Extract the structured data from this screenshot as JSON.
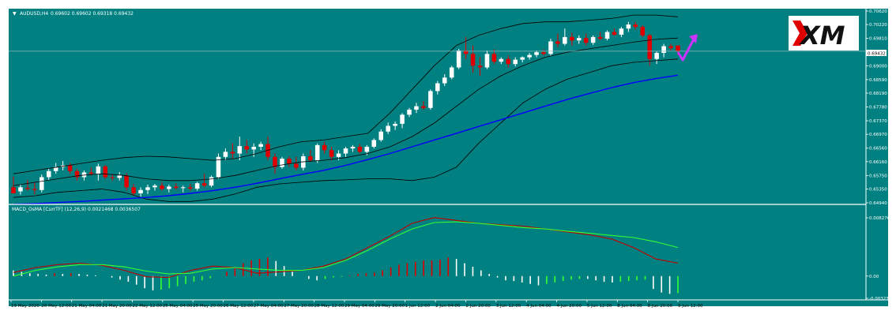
{
  "colors": {
    "background": "#008080",
    "frame": "#ffffff",
    "bull_candle": "#ffffff",
    "bear_candle": "#e00000",
    "bollinger": "#000000",
    "moving_average": "#0000ff",
    "macd_main": "#c00000",
    "macd_signal": "#33ff33",
    "osma_up": "#ffffff",
    "osma_up_alt": "#e00000",
    "osma_down": "#33ff33",
    "arrow": "#cc33ff",
    "last_price_bg": "#ffffff"
  },
  "header": {
    "symbol_label": "AUDUSD,H4",
    "ohlc_label": "0.69602 0.69602 0.69318 0.69432"
  },
  "logo": {
    "text": "XM"
  },
  "last_price_label": "0.69432",
  "macd_header": "MACD_OsMA [CurrTF] (12,26,9) 0.0021468 0.0036507",
  "chart_data": [
    {
      "type": "candlestick",
      "title": "AUDUSD,H4",
      "price_axis_ticks": [
        "0.70620",
        "0.70220",
        "0.69810",
        "0.69432",
        "0.69000",
        "0.68590",
        "0.68190",
        "0.67780",
        "0.67370",
        "0.66970",
        "0.66560",
        "0.66160",
        "0.65750",
        "0.65350",
        "0.64940"
      ],
      "ylim": [
        0.6494,
        0.7062
      ],
      "time_axis_ticks": [
        "19 May 2020",
        "20 May 12:00",
        "21 May 04:00",
        "21 May 20:00",
        "22 May 12:00",
        "25 May 04:00",
        "25 May 20:00",
        "26 May 12:00",
        "27 May 04:00",
        "27 May 20:00",
        "28 May 12:00",
        "29 May 04:00",
        "29 May 20:00",
        "1 Jun 12:00",
        "2 Jun 04:00",
        "2 Jun 20:00",
        "3 Jun 12:00",
        "4 Jun 04:00",
        "4 Jun 20:00",
        "5 Jun 12:00",
        "8 Jun 04:00",
        "8 Jun 20:00",
        "9 Jun 12:00"
      ],
      "candles": [
        {
          "o": 0.654,
          "h": 0.6572,
          "l": 0.6524,
          "c": 0.6522
        },
        {
          "o": 0.6528,
          "h": 0.655,
          "l": 0.6518,
          "c": 0.654
        },
        {
          "o": 0.6538,
          "h": 0.6562,
          "l": 0.653,
          "c": 0.6535
        },
        {
          "o": 0.6535,
          "h": 0.6555,
          "l": 0.652,
          "c": 0.6532
        },
        {
          "o": 0.6532,
          "h": 0.6578,
          "l": 0.6525,
          "c": 0.657
        },
        {
          "o": 0.657,
          "h": 0.6596,
          "l": 0.656,
          "c": 0.6588
        },
        {
          "o": 0.6588,
          "h": 0.6612,
          "l": 0.658,
          "c": 0.66
        },
        {
          "o": 0.66,
          "h": 0.6618,
          "l": 0.659,
          "c": 0.6605
        },
        {
          "o": 0.6605,
          "h": 0.6612,
          "l": 0.658,
          "c": 0.6588
        },
        {
          "o": 0.6588,
          "h": 0.6595,
          "l": 0.656,
          "c": 0.657
        },
        {
          "o": 0.657,
          "h": 0.659,
          "l": 0.656,
          "c": 0.6584
        },
        {
          "o": 0.6584,
          "h": 0.6598,
          "l": 0.6575,
          "c": 0.658
        },
        {
          "o": 0.658,
          "h": 0.661,
          "l": 0.656,
          "c": 0.6602
        },
        {
          "o": 0.6602,
          "h": 0.6606,
          "l": 0.6565,
          "c": 0.657
        },
        {
          "o": 0.657,
          "h": 0.6578,
          "l": 0.656,
          "c": 0.6568
        },
        {
          "o": 0.6568,
          "h": 0.6585,
          "l": 0.656,
          "c": 0.6575
        },
        {
          "o": 0.6575,
          "h": 0.6582,
          "l": 0.653,
          "c": 0.654
        },
        {
          "o": 0.654,
          "h": 0.655,
          "l": 0.6515,
          "c": 0.6522
        },
        {
          "o": 0.6522,
          "h": 0.654,
          "l": 0.6512,
          "c": 0.6532
        },
        {
          "o": 0.6532,
          "h": 0.6548,
          "l": 0.652,
          "c": 0.654
        },
        {
          "o": 0.654,
          "h": 0.655,
          "l": 0.653,
          "c": 0.6545
        },
        {
          "o": 0.6545,
          "h": 0.6555,
          "l": 0.653,
          "c": 0.6535
        },
        {
          "o": 0.6535,
          "h": 0.6548,
          "l": 0.6525,
          "c": 0.6542
        },
        {
          "o": 0.6542,
          "h": 0.6552,
          "l": 0.6532,
          "c": 0.6538
        },
        {
          "o": 0.6538,
          "h": 0.6545,
          "l": 0.6525,
          "c": 0.654
        },
        {
          "o": 0.654,
          "h": 0.655,
          "l": 0.653,
          "c": 0.6536
        },
        {
          "o": 0.6536,
          "h": 0.6556,
          "l": 0.653,
          "c": 0.6552
        },
        {
          "o": 0.6552,
          "h": 0.658,
          "l": 0.654,
          "c": 0.6545
        },
        {
          "o": 0.6545,
          "h": 0.6575,
          "l": 0.654,
          "c": 0.657
        },
        {
          "o": 0.657,
          "h": 0.664,
          "l": 0.6565,
          "c": 0.663
        },
        {
          "o": 0.663,
          "h": 0.6655,
          "l": 0.662,
          "c": 0.6645
        },
        {
          "o": 0.6645,
          "h": 0.667,
          "l": 0.6625,
          "c": 0.664
        },
        {
          "o": 0.664,
          "h": 0.669,
          "l": 0.662,
          "c": 0.6662
        },
        {
          "o": 0.6662,
          "h": 0.668,
          "l": 0.664,
          "c": 0.6652
        },
        {
          "o": 0.6652,
          "h": 0.667,
          "l": 0.663,
          "c": 0.666
        },
        {
          "o": 0.666,
          "h": 0.6675,
          "l": 0.665,
          "c": 0.6668
        },
        {
          "o": 0.6668,
          "h": 0.669,
          "l": 0.662,
          "c": 0.663
        },
        {
          "o": 0.663,
          "h": 0.664,
          "l": 0.658,
          "c": 0.66
        },
        {
          "o": 0.66,
          "h": 0.663,
          "l": 0.6595,
          "c": 0.6625
        },
        {
          "o": 0.6625,
          "h": 0.6632,
          "l": 0.66,
          "c": 0.661
        },
        {
          "o": 0.661,
          "h": 0.663,
          "l": 0.659,
          "c": 0.6598
        },
        {
          "o": 0.6598,
          "h": 0.664,
          "l": 0.659,
          "c": 0.6632
        },
        {
          "o": 0.6632,
          "h": 0.665,
          "l": 0.6615,
          "c": 0.662
        },
        {
          "o": 0.662,
          "h": 0.667,
          "l": 0.6612,
          "c": 0.6665
        },
        {
          "o": 0.6665,
          "h": 0.6675,
          "l": 0.664,
          "c": 0.665
        },
        {
          "o": 0.665,
          "h": 0.666,
          "l": 0.662,
          "c": 0.663
        },
        {
          "o": 0.663,
          "h": 0.665,
          "l": 0.662,
          "c": 0.664
        },
        {
          "o": 0.664,
          "h": 0.666,
          "l": 0.663,
          "c": 0.6655
        },
        {
          "o": 0.6655,
          "h": 0.6665,
          "l": 0.6645,
          "c": 0.666
        },
        {
          "o": 0.666,
          "h": 0.6668,
          "l": 0.664,
          "c": 0.6645
        },
        {
          "o": 0.6645,
          "h": 0.6665,
          "l": 0.6635,
          "c": 0.666
        },
        {
          "o": 0.666,
          "h": 0.6685,
          "l": 0.6655,
          "c": 0.668
        },
        {
          "o": 0.668,
          "h": 0.6712,
          "l": 0.6675,
          "c": 0.6705
        },
        {
          "o": 0.6705,
          "h": 0.6732,
          "l": 0.6698,
          "c": 0.6722
        },
        {
          "o": 0.6722,
          "h": 0.6735,
          "l": 0.671,
          "c": 0.6728
        },
        {
          "o": 0.6728,
          "h": 0.676,
          "l": 0.6715,
          "c": 0.6755
        },
        {
          "o": 0.6755,
          "h": 0.6775,
          "l": 0.6748,
          "c": 0.677
        },
        {
          "o": 0.677,
          "h": 0.679,
          "l": 0.676,
          "c": 0.678
        },
        {
          "o": 0.678,
          "h": 0.6795,
          "l": 0.677,
          "c": 0.6775
        },
        {
          "o": 0.6775,
          "h": 0.683,
          "l": 0.677,
          "c": 0.6825
        },
        {
          "o": 0.6825,
          "h": 0.6855,
          "l": 0.6815,
          "c": 0.6848
        },
        {
          "o": 0.6848,
          "h": 0.6875,
          "l": 0.684,
          "c": 0.6865
        },
        {
          "o": 0.6865,
          "h": 0.69,
          "l": 0.686,
          "c": 0.6895
        },
        {
          "o": 0.6895,
          "h": 0.695,
          "l": 0.689,
          "c": 0.6945
        },
        {
          "o": 0.6945,
          "h": 0.6985,
          "l": 0.692,
          "c": 0.6935
        },
        {
          "o": 0.6935,
          "h": 0.696,
          "l": 0.688,
          "c": 0.69
        },
        {
          "o": 0.69,
          "h": 0.6925,
          "l": 0.687,
          "c": 0.6895
        },
        {
          "o": 0.6895,
          "h": 0.6945,
          "l": 0.689,
          "c": 0.6935
        },
        {
          "o": 0.6935,
          "h": 0.6948,
          "l": 0.6905,
          "c": 0.6912
        },
        {
          "o": 0.6912,
          "h": 0.6925,
          "l": 0.6905,
          "c": 0.692
        },
        {
          "o": 0.692,
          "h": 0.693,
          "l": 0.6895,
          "c": 0.6905
        },
        {
          "o": 0.6905,
          "h": 0.6925,
          "l": 0.6898,
          "c": 0.6918
        },
        {
          "o": 0.6918,
          "h": 0.6928,
          "l": 0.691,
          "c": 0.6925
        },
        {
          "o": 0.6925,
          "h": 0.6938,
          "l": 0.6918,
          "c": 0.6932
        },
        {
          "o": 0.6932,
          "h": 0.6945,
          "l": 0.6925,
          "c": 0.694
        },
        {
          "o": 0.694,
          "h": 0.6948,
          "l": 0.693,
          "c": 0.6935
        },
        {
          "o": 0.6935,
          "h": 0.698,
          "l": 0.693,
          "c": 0.6972
        },
        {
          "o": 0.6972,
          "h": 0.6995,
          "l": 0.6955,
          "c": 0.6965
        },
        {
          "o": 0.6965,
          "h": 0.701,
          "l": 0.696,
          "c": 0.6985
        },
        {
          "o": 0.6985,
          "h": 0.6998,
          "l": 0.696,
          "c": 0.6975
        },
        {
          "o": 0.6975,
          "h": 0.699,
          "l": 0.6965,
          "c": 0.6982
        },
        {
          "o": 0.6982,
          "h": 0.6995,
          "l": 0.696,
          "c": 0.6968
        },
        {
          "o": 0.6968,
          "h": 0.699,
          "l": 0.6962,
          "c": 0.6985
        },
        {
          "o": 0.6985,
          "h": 0.7,
          "l": 0.6975,
          "c": 0.698
        },
        {
          "o": 0.698,
          "h": 0.7005,
          "l": 0.6975,
          "c": 0.7
        },
        {
          "o": 0.7,
          "h": 0.701,
          "l": 0.6988,
          "c": 0.6992
        },
        {
          "o": 0.6992,
          "h": 0.7015,
          "l": 0.6985,
          "c": 0.701
        },
        {
          "o": 0.701,
          "h": 0.703,
          "l": 0.7,
          "c": 0.7022
        },
        {
          "o": 0.7022,
          "h": 0.703,
          "l": 0.7008,
          "c": 0.7015
        },
        {
          "o": 0.7015,
          "h": 0.702,
          "l": 0.6985,
          "c": 0.699
        },
        {
          "o": 0.699,
          "h": 0.6995,
          "l": 0.69,
          "c": 0.692
        },
        {
          "o": 0.692,
          "h": 0.6942,
          "l": 0.6905,
          "c": 0.6938
        },
        {
          "o": 0.6938,
          "h": 0.6965,
          "l": 0.6925,
          "c": 0.6958
        },
        {
          "o": 0.6958,
          "h": 0.6965,
          "l": 0.6945,
          "c": 0.6952
        },
        {
          "o": 0.696,
          "h": 0.696,
          "l": 0.6932,
          "c": 0.6943
        }
      ],
      "bollinger_upper": [
        0.658,
        0.659,
        0.66,
        0.661,
        0.662,
        0.6628,
        0.6632,
        0.663,
        0.6625,
        0.662,
        0.6625,
        0.664,
        0.666,
        0.6675,
        0.668,
        0.669,
        0.67,
        0.676,
        0.683,
        0.69,
        0.696,
        0.699,
        0.701,
        0.7025,
        0.703,
        0.703,
        0.7035,
        0.704,
        0.705,
        0.705,
        0.7045
      ],
      "bollinger_middle": [
        0.6545,
        0.6555,
        0.6565,
        0.6575,
        0.658,
        0.6575,
        0.6565,
        0.656,
        0.656,
        0.6565,
        0.6575,
        0.659,
        0.6605,
        0.6615,
        0.662,
        0.6628,
        0.664,
        0.666,
        0.669,
        0.673,
        0.678,
        0.683,
        0.687,
        0.69,
        0.6925,
        0.694,
        0.695,
        0.696,
        0.697,
        0.6978,
        0.6982
      ],
      "bollinger_lower": [
        0.651,
        0.6515,
        0.6525,
        0.653,
        0.6535,
        0.6525,
        0.6505,
        0.6498,
        0.6498,
        0.6505,
        0.652,
        0.654,
        0.655,
        0.6555,
        0.656,
        0.6562,
        0.6565,
        0.6565,
        0.656,
        0.657,
        0.66,
        0.667,
        0.673,
        0.679,
        0.683,
        0.686,
        0.688,
        0.69,
        0.691,
        0.6915,
        0.692
      ],
      "moving_average": [
        0.649,
        0.6492,
        0.6495,
        0.6498,
        0.6502,
        0.6506,
        0.651,
        0.6515,
        0.6522,
        0.653,
        0.654,
        0.6552,
        0.6565,
        0.6578,
        0.659,
        0.6605,
        0.6622,
        0.664,
        0.666,
        0.668,
        0.67,
        0.672,
        0.674,
        0.676,
        0.678,
        0.68,
        0.6818,
        0.6835,
        0.685,
        0.6862,
        0.6872
      ]
    },
    {
      "type": "bar",
      "title": "MACD_OsMA [CurrTF] (12,26,9) 0.0021468 0.0036507",
      "value_axis_ticks": [
        "0.008276",
        "0.00",
        "-0.003230"
      ],
      "ylim": [
        -0.00323,
        0.008276
      ],
      "osma_histogram": [
        0.0008,
        0.0006,
        0.0004,
        0.0003,
        0.0002,
        0.0004,
        0.0003,
        0.0004,
        0.0003,
        0.0002,
        0.0001,
        0.0,
        -0.0002,
        -0.0005,
        -0.0008,
        -0.0012,
        -0.0017,
        -0.002,
        -0.0019,
        -0.0017,
        -0.0014,
        -0.0011,
        -0.0008,
        -0.0006,
        -0.0003,
        0.0,
        0.0006,
        0.0012,
        0.0018,
        0.0022,
        0.0024,
        0.0026,
        0.0021,
        0.0014,
        0.0006,
        0.0,
        -0.0004,
        -0.0006,
        -0.0004,
        -0.0002,
        -0.0001,
        0.0001,
        0.0003,
        0.0004,
        0.0005,
        0.0008,
        0.0012,
        0.0016,
        0.0018,
        0.002,
        0.0022,
        0.0022,
        0.0023,
        0.0026,
        0.0024,
        0.0018,
        0.0013,
        0.0008,
        0.0003,
        -0.0002,
        -0.0006,
        -0.0007,
        -0.0009,
        -0.0011,
        -0.0013,
        -0.0011,
        -0.0009,
        -0.0007,
        -0.0005,
        -0.0004,
        -0.0004,
        -0.0006,
        -0.0008,
        -0.0009,
        -0.0008,
        -0.0007,
        -0.0006,
        -0.0005,
        -0.0018,
        -0.0023,
        -0.0025,
        -0.0024
      ],
      "macd_main": [
        0.0005,
        0.0012,
        0.0016,
        0.0018,
        0.0015,
        0.0008,
        -0.0001,
        -0.0002,
        0.0008,
        0.0014,
        0.0012,
        0.0004,
        0.0006,
        0.0008,
        0.0014,
        0.0024,
        0.004,
        0.0056,
        0.0074,
        0.0082,
        0.0078,
        0.0074,
        0.0072,
        0.007,
        0.0066,
        0.0062,
        0.0058,
        0.0052,
        0.004,
        0.0024,
        0.0018
      ],
      "macd_signal": [
        0.0,
        0.0008,
        0.0013,
        0.0016,
        0.0016,
        0.0013,
        0.0007,
        0.0003,
        0.0004,
        0.001,
        0.0012,
        0.001,
        0.0008,
        0.0008,
        0.0012,
        0.0022,
        0.0036,
        0.0052,
        0.0066,
        0.0075,
        0.0076,
        0.0074,
        0.0071,
        0.0068,
        0.0066,
        0.0063,
        0.006,
        0.0057,
        0.0054,
        0.0048,
        0.004
      ]
    }
  ]
}
